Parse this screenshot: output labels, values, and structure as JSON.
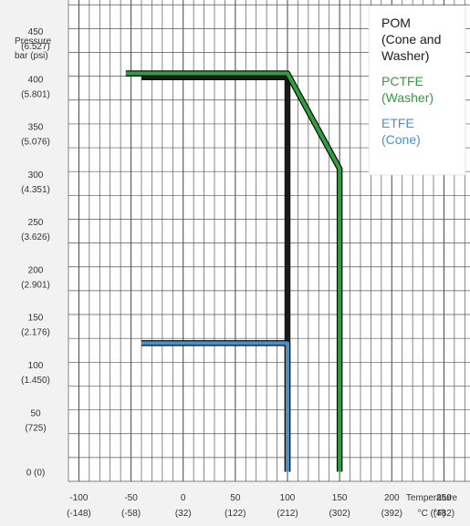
{
  "chart_data": {
    "type": "line",
    "title": "",
    "ylabel_lines": [
      "Pressure",
      "bar (psi)"
    ],
    "xlabel_lines": [
      "Temperature",
      "°C (°F)"
    ],
    "xlim": [
      -110,
      275
    ],
    "ylim": [
      -10,
      495
    ],
    "x_ticks": [
      {
        "value": -100,
        "line1": "-100",
        "line2": "(-148)"
      },
      {
        "value": -50,
        "line1": "-50",
        "line2": "(-58)"
      },
      {
        "value": 0,
        "line1": "0",
        "line2": "(32)"
      },
      {
        "value": 50,
        "line1": "50",
        "line2": "(122)"
      },
      {
        "value": 100,
        "line1": "100",
        "line2": "(212)"
      },
      {
        "value": 150,
        "line1": "150",
        "line2": "(302)"
      },
      {
        "value": 200,
        "line1": "200",
        "line2": "(392)"
      },
      {
        "value": 250,
        "line1": "250",
        "line2": "(482)"
      }
    ],
    "y_ticks": [
      {
        "value": 0,
        "line1": "0 (0)",
        "line2": ""
      },
      {
        "value": 50,
        "line1": "50",
        "line2": "(725)"
      },
      {
        "value": 100,
        "line1": "100",
        "line2": "(1.450)"
      },
      {
        "value": 150,
        "line1": "150",
        "line2": "(2.176)"
      },
      {
        "value": 200,
        "line1": "200",
        "line2": "(2.901)"
      },
      {
        "value": 250,
        "line1": "250",
        "line2": "(3.626)"
      },
      {
        "value": 300,
        "line1": "300",
        "line2": "(4.351)"
      },
      {
        "value": 350,
        "line1": "350",
        "line2": "(5.076)"
      },
      {
        "value": 400,
        "line1": "400",
        "line2": "(5.801)"
      },
      {
        "value": 450,
        "line1": "450",
        "line2": "(6.527)"
      }
    ],
    "grid": true,
    "legend_position": "top-right",
    "series": [
      {
        "key": "pom",
        "legend_lines": [
          "POM",
          "(Cone and",
          "Washer)"
        ],
        "color": "#1a1a1a",
        "points": [
          [
            -40,
            414
          ],
          [
            100,
            414
          ],
          [
            100,
            0
          ]
        ]
      },
      {
        "key": "pctfe",
        "legend_lines": [
          "PCTFE",
          "(Washer)"
        ],
        "color": "#2e9e3e",
        "points": [
          [
            -55,
            418
          ],
          [
            100,
            418
          ],
          [
            150,
            318
          ],
          [
            150,
            0
          ]
        ]
      },
      {
        "key": "etfe",
        "legend_lines": [
          "ETFE",
          "(Cone)"
        ],
        "color": "#4a90c8",
        "points": [
          [
            -40,
            135
          ],
          [
            100,
            135
          ],
          [
            100,
            0
          ]
        ]
      }
    ]
  }
}
